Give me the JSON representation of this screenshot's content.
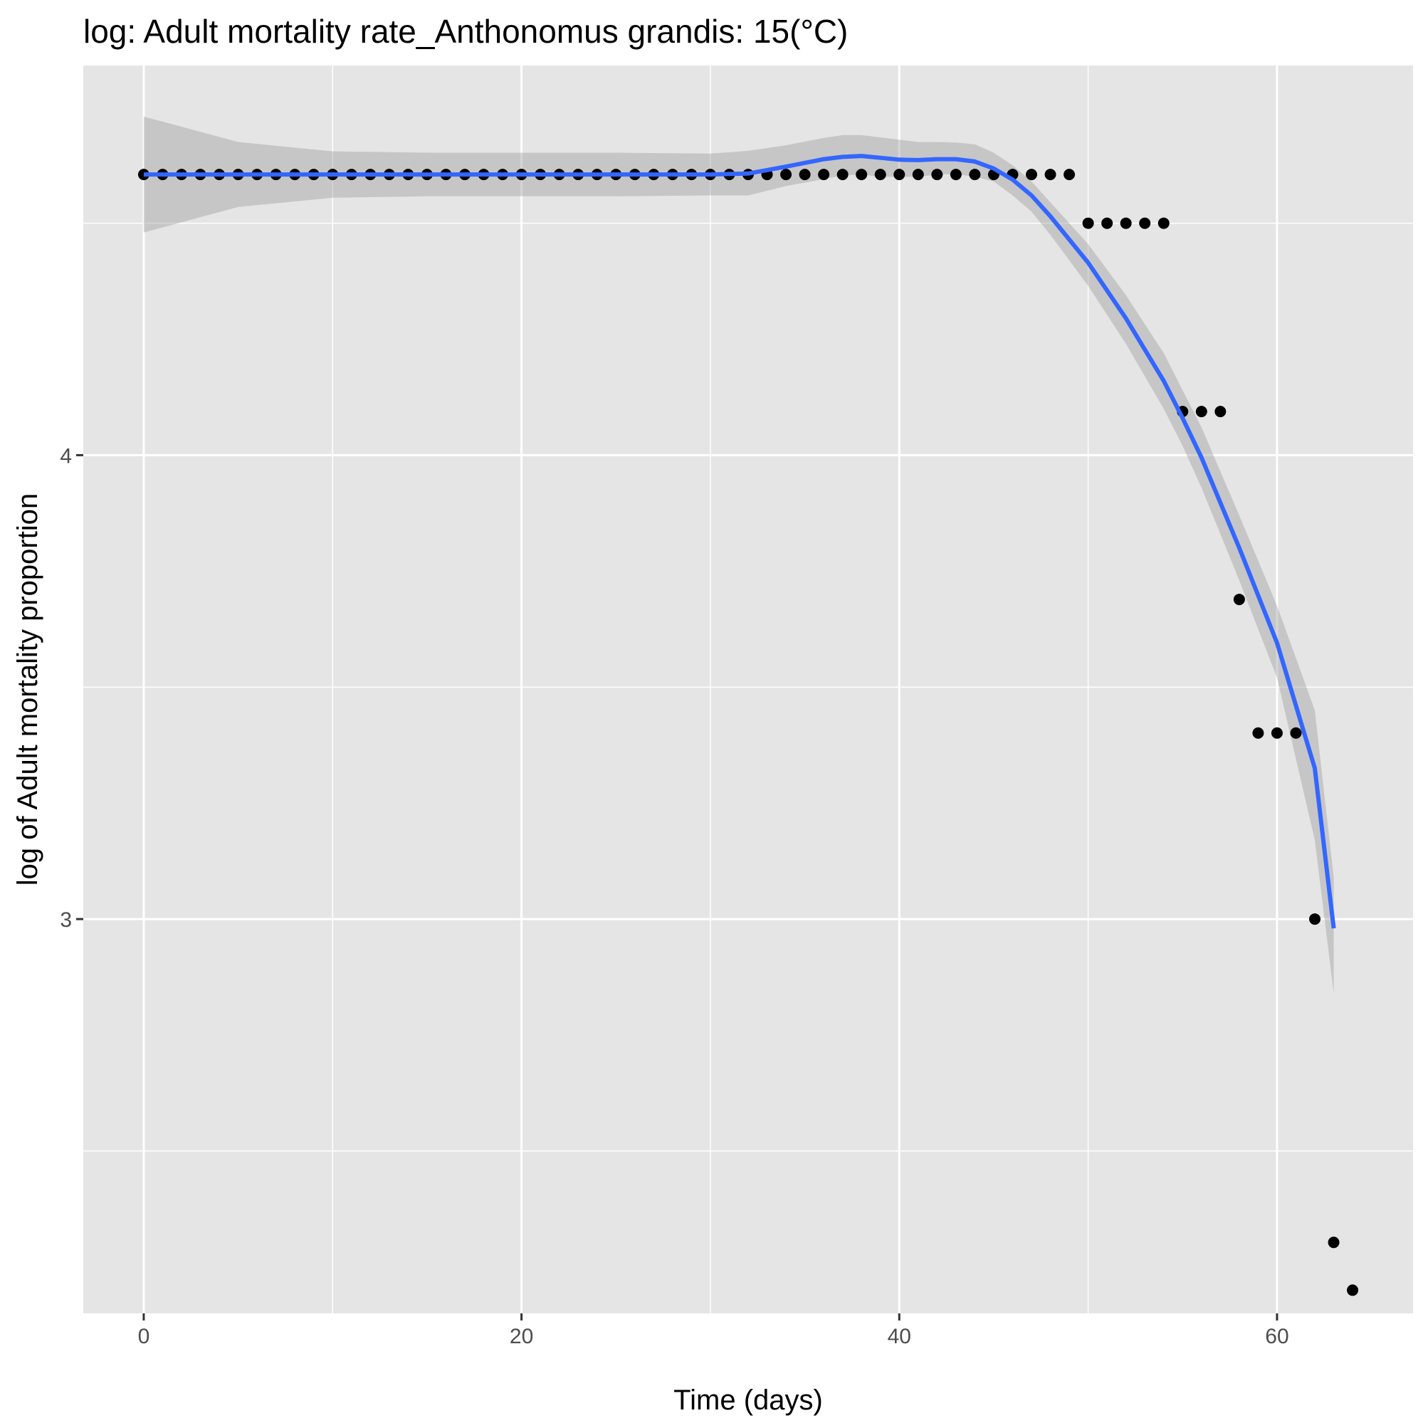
{
  "chart_data": {
    "type": "scatter",
    "title": "log: Adult mortality rate_Anthonomus grandis: 15(°C)",
    "xlabel": "Time (days)",
    "ylabel": "log of Adult mortality proportion",
    "xlim": [
      -3.2,
      67.2
    ],
    "ylim": [
      2.15,
      4.84
    ],
    "x_ticks": [
      0,
      20,
      40,
      60
    ],
    "y_ticks": [
      3,
      4
    ],
    "x_minor": [
      10,
      30,
      50
    ],
    "y_minor": [
      2.5,
      3.5,
      4.5
    ],
    "grid": true,
    "legend": "none",
    "colors": {
      "panel": "#e5e5e5",
      "grid": "#ffffff",
      "point": "#000000",
      "smooth_line": "#3366ff",
      "ribbon": "#bfbfbf"
    },
    "points": {
      "x": [
        0,
        1,
        2,
        3,
        4,
        5,
        6,
        7,
        8,
        9,
        10,
        11,
        12,
        13,
        14,
        15,
        16,
        17,
        18,
        19,
        20,
        21,
        22,
        23,
        24,
        25,
        26,
        27,
        28,
        29,
        30,
        31,
        32,
        33,
        34,
        35,
        36,
        37,
        38,
        39,
        40,
        41,
        42,
        43,
        44,
        45,
        46,
        47,
        48,
        49,
        50,
        51,
        52,
        53,
        54,
        55,
        56,
        57,
        58,
        59,
        60,
        61,
        62,
        63,
        64
      ],
      "y": [
        4.605,
        4.605,
        4.605,
        4.605,
        4.605,
        4.605,
        4.605,
        4.605,
        4.605,
        4.605,
        4.605,
        4.605,
        4.605,
        4.605,
        4.605,
        4.605,
        4.605,
        4.605,
        4.605,
        4.605,
        4.605,
        4.605,
        4.605,
        4.605,
        4.605,
        4.605,
        4.605,
        4.605,
        4.605,
        4.605,
        4.605,
        4.605,
        4.605,
        4.605,
        4.605,
        4.605,
        4.605,
        4.605,
        4.605,
        4.605,
        4.605,
        4.605,
        4.605,
        4.605,
        4.605,
        4.605,
        4.605,
        4.605,
        4.605,
        4.605,
        4.5,
        4.5,
        4.5,
        4.5,
        4.5,
        4.094,
        4.094,
        4.094,
        3.689,
        3.401,
        3.401,
        3.401,
        3.0,
        2.303,
        2.2
      ]
    },
    "smooth": {
      "x": [
        0,
        5,
        10,
        15,
        20,
        25,
        30,
        32,
        34,
        36,
        37,
        38,
        39,
        40,
        41,
        42,
        43,
        44,
        45,
        46,
        47,
        48,
        50,
        52,
        54,
        55,
        56,
        58,
        60,
        62,
        63
      ],
      "y": [
        4.605,
        4.605,
        4.605,
        4.605,
        4.605,
        4.605,
        4.605,
        4.607,
        4.622,
        4.638,
        4.643,
        4.645,
        4.641,
        4.637,
        4.636,
        4.638,
        4.638,
        4.633,
        4.618,
        4.594,
        4.56,
        4.515,
        4.415,
        4.295,
        4.16,
        4.08,
        3.995,
        3.8,
        3.595,
        3.325,
        2.98
      ],
      "lower": [
        4.48,
        4.535,
        4.555,
        4.558,
        4.558,
        4.558,
        4.56,
        4.56,
        4.58,
        4.595,
        4.603,
        4.605,
        4.6,
        4.6,
        4.6,
        4.605,
        4.606,
        4.6,
        4.59,
        4.56,
        4.525,
        4.475,
        4.365,
        4.24,
        4.1,
        4.02,
        3.93,
        3.73,
        3.52,
        3.17,
        2.84
      ],
      "upper": [
        4.73,
        4.675,
        4.655,
        4.652,
        4.652,
        4.652,
        4.65,
        4.656,
        4.668,
        4.684,
        4.69,
        4.69,
        4.685,
        4.68,
        4.675,
        4.675,
        4.674,
        4.67,
        4.652,
        4.625,
        4.59,
        4.545,
        4.455,
        4.345,
        4.22,
        4.14,
        4.06,
        3.87,
        3.675,
        3.45,
        3.09
      ]
    }
  }
}
